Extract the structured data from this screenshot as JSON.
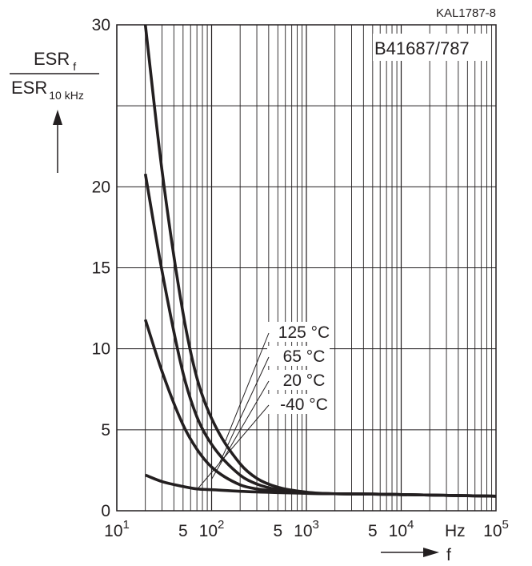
{
  "chart_data": {
    "type": "line",
    "code": "KAL1787-8",
    "title": "B41687/787",
    "ylabel": {
      "numerator": "ESR",
      "numerator_sub": "f",
      "denominator": "ESR",
      "denominator_sub": "10 kHz"
    },
    "xlabel": "f",
    "x_unit": "Hz",
    "x_scale": "log",
    "xlim": [
      10,
      100000
    ],
    "ylim": [
      0,
      30
    ],
    "y_ticks": [
      "0",
      "5",
      "10",
      "15",
      "20",
      "30"
    ],
    "x_tick_labels": [
      {
        "value": 10,
        "base": "10",
        "exp": "1"
      },
      {
        "value": 50,
        "base": "5",
        "exp": ""
      },
      {
        "value": 100,
        "base": "10",
        "exp": "2"
      },
      {
        "value": 500,
        "base": "5",
        "exp": ""
      },
      {
        "value": 1000,
        "base": "10",
        "exp": "3"
      },
      {
        "value": 5000,
        "base": "5",
        "exp": ""
      },
      {
        "value": 10000,
        "base": "10",
        "exp": "4"
      },
      {
        "value": 100000,
        "base": "10",
        "exp": "5"
      }
    ],
    "grid": true,
    "line_color": "#231f20",
    "series": [
      {
        "name": "-40 °C",
        "x": [
          20,
          30,
          50,
          70,
          100,
          200,
          500,
          1000,
          2000,
          5000,
          10000,
          20000,
          50000,
          100000
        ],
        "y": [
          2.2,
          1.8,
          1.5,
          1.35,
          1.3,
          1.2,
          1.12,
          1.08,
          1.05,
          1.03,
          1.0,
          0.97,
          0.93,
          0.9
        ]
      },
      {
        "name": "20 °C",
        "x": [
          20,
          30,
          50,
          70,
          100,
          200,
          300,
          500,
          1000,
          2000,
          5000,
          10000,
          20000,
          50000,
          100000
        ],
        "y": [
          11.8,
          8.6,
          5.3,
          3.8,
          2.7,
          1.6,
          1.35,
          1.2,
          1.08,
          1.05,
          1.03,
          1.0,
          0.97,
          0.93,
          0.9
        ]
      },
      {
        "name": "65 °C",
        "x": [
          20,
          30,
          50,
          70,
          100,
          200,
          300,
          500,
          1000,
          2000,
          5000,
          10000,
          20000,
          50000,
          100000
        ],
        "y": [
          20.8,
          14.8,
          8.5,
          5.8,
          4.1,
          2.2,
          1.65,
          1.3,
          1.1,
          1.05,
          1.03,
          1.0,
          0.97,
          0.93,
          0.9
        ]
      },
      {
        "name": "125 °C",
        "x": [
          20,
          30,
          50,
          70,
          100,
          200,
          300,
          500,
          1000,
          2000,
          5000,
          10000,
          20000,
          50000,
          100000
        ],
        "y": [
          30,
          21,
          12.2,
          8.2,
          5.7,
          2.9,
          2.0,
          1.45,
          1.15,
          1.05,
          1.03,
          1.0,
          0.97,
          0.93,
          0.9
        ]
      }
    ],
    "series_labels": [
      "125 °C",
      "65 °C",
      "20 °C",
      "-40 °C"
    ]
  }
}
